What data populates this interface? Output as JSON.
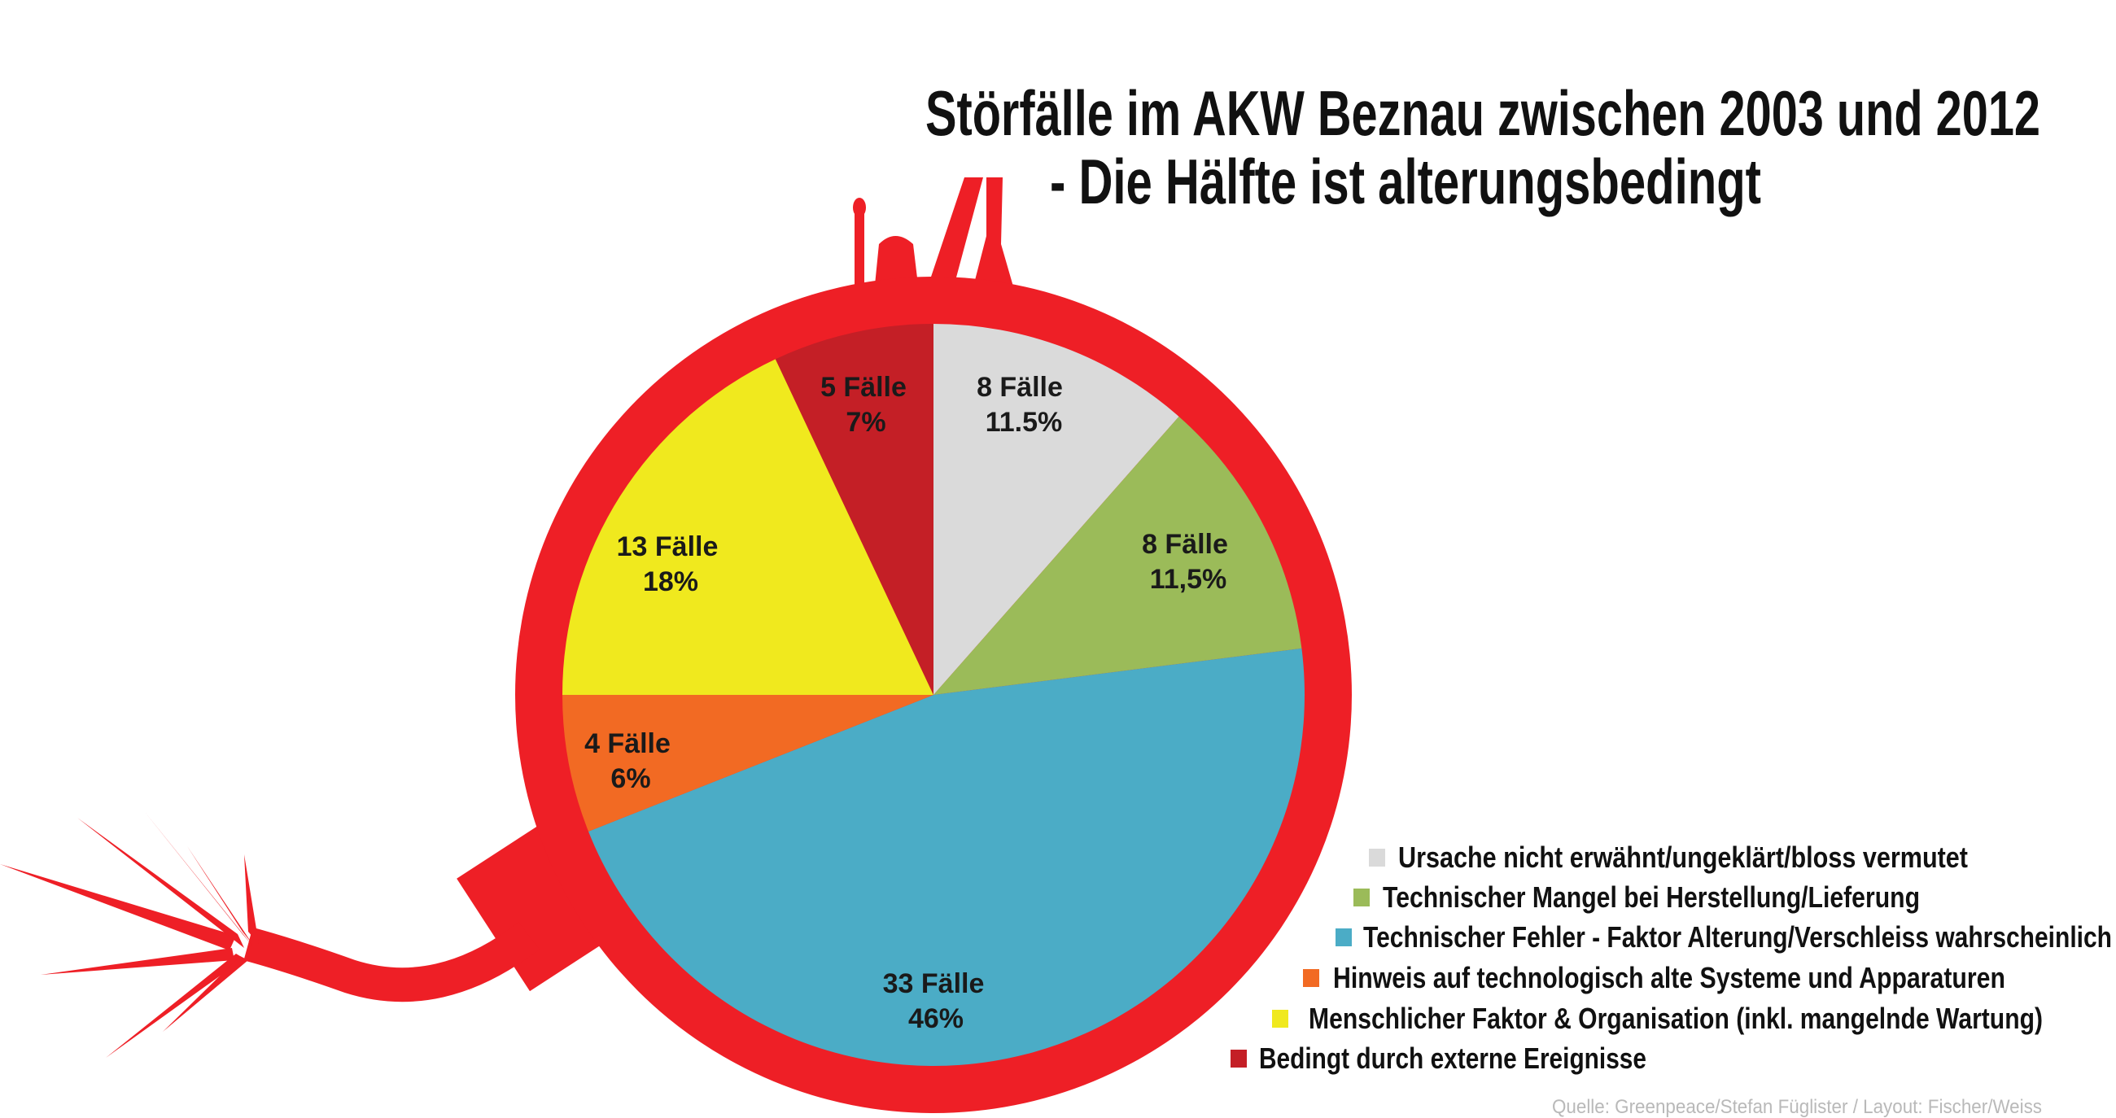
{
  "chart_data": {
    "type": "pie",
    "title": "Störfälle im AKW Beznau zwischen 2003 und 2012",
    "subtitle": "- Die Hälfte ist alterungsbedingt",
    "start_angle": "12 o'clock",
    "direction": "clockwise",
    "slices": [
      {
        "name": "Ursache nicht erwähnt/ungeklärt/bloss vermutet",
        "cases": 8,
        "percent": 11.5,
        "label_cases": "8 Fälle",
        "label_percent": "11.5%",
        "color": "#dadada"
      },
      {
        "name": "Technischer Mangel bei Herstellung/Lieferung",
        "cases": 8,
        "percent": 11.5,
        "label_cases": "8 Fälle",
        "label_percent": "11,5%",
        "color": "#9bbb59"
      },
      {
        "name": "Technischer Fehler - Faktor Alterung/Verschleiss wahrscheinlich",
        "cases": 33,
        "percent": 46,
        "label_cases": "33 Fälle",
        "label_percent": "46%",
        "color": "#4bacc6"
      },
      {
        "name": "Hinweis auf technologisch alte Systeme und Apparaturen",
        "cases": 4,
        "percent": 6,
        "label_cases": "4 Fälle",
        "label_percent": "6%",
        "color": "#f26a23"
      },
      {
        "name": "Menschlicher Faktor & Organisation (inkl. mangelnde Wartung)",
        "cases": 13,
        "percent": 18,
        "label_cases": "13 Fälle",
        "label_percent": "18%",
        "color": "#f0e91e"
      },
      {
        "name": "Bedingt durch externe Ereignisse",
        "cases": 5,
        "percent": 7,
        "label_cases": "5 Fälle",
        "label_percent": "7%",
        "color": "#c41f26"
      }
    ],
    "legend_placement": "bottom-right",
    "source": "Quelle: Greenpeace/Stefan Füglister / Layout: Fischer/Weiss"
  },
  "colors": {
    "bomb": "#ee1f26"
  }
}
